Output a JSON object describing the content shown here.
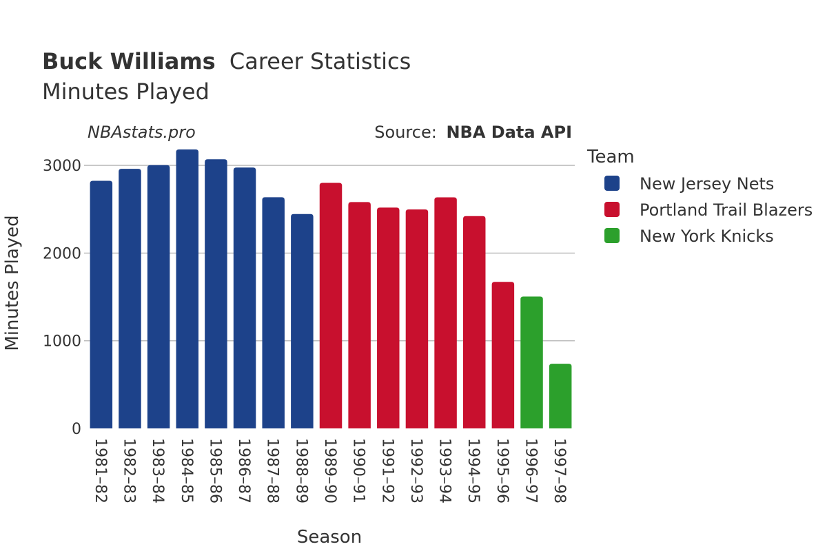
{
  "chart_data": {
    "type": "bar",
    "title_bold": "Buck Williams",
    "title_rest": "Career Statistics",
    "subtitle": "Minutes Played",
    "watermark": "NBAstats.pro",
    "source_prefix": "Source:",
    "source_name": "NBA Data API",
    "xlabel": "Season",
    "ylabel": "Minutes Played",
    "ylim": [
      0,
      3300
    ],
    "yticks": [
      0,
      1000,
      2000,
      3000
    ],
    "grid": true,
    "legend": {
      "title": "Team",
      "placement": "right",
      "items": [
        {
          "name": "New Jersey Nets",
          "color": "#1d428a"
        },
        {
          "name": "Portland Trail Blazers",
          "color": "#c8102e"
        },
        {
          "name": "New York Knicks",
          "color": "#2ca02c"
        }
      ]
    },
    "bars": [
      {
        "season": "1981–82",
        "value": 2825,
        "team": "New Jersey Nets"
      },
      {
        "season": "1982–83",
        "value": 2961,
        "team": "New Jersey Nets"
      },
      {
        "season": "1983–84",
        "value": 3003,
        "team": "New Jersey Nets"
      },
      {
        "season": "1984–85",
        "value": 3182,
        "team": "New Jersey Nets"
      },
      {
        "season": "1985–86",
        "value": 3070,
        "team": "New Jersey Nets"
      },
      {
        "season": "1986–87",
        "value": 2976,
        "team": "New Jersey Nets"
      },
      {
        "season": "1987–88",
        "value": 2637,
        "team": "New Jersey Nets"
      },
      {
        "season": "1988–89",
        "value": 2446,
        "team": "New Jersey Nets"
      },
      {
        "season": "1989–90",
        "value": 2801,
        "team": "Portland Trail Blazers"
      },
      {
        "season": "1990–91",
        "value": 2582,
        "team": "Portland Trail Blazers"
      },
      {
        "season": "1991–92",
        "value": 2519,
        "team": "Portland Trail Blazers"
      },
      {
        "season": "1992–93",
        "value": 2498,
        "team": "Portland Trail Blazers"
      },
      {
        "season": "1993–94",
        "value": 2636,
        "team": "Portland Trail Blazers"
      },
      {
        "season": "1994–95",
        "value": 2422,
        "team": "Portland Trail Blazers"
      },
      {
        "season": "1995–96",
        "value": 1672,
        "team": "Portland Trail Blazers"
      },
      {
        "season": "1996–97",
        "value": 1505,
        "team": "New York Knicks"
      },
      {
        "season": "1997–98",
        "value": 738,
        "team": "New York Knicks"
      }
    ]
  }
}
